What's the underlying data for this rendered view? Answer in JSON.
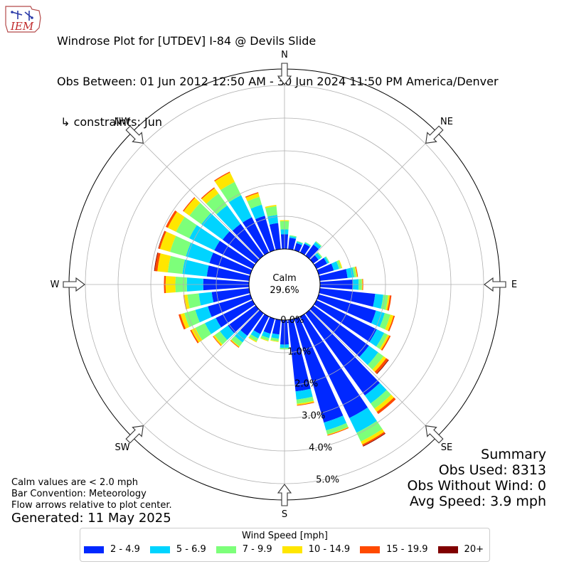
{
  "header": {
    "logo_text": "IEM",
    "title_line1": "Windrose Plot for [UTDEV] I-84 @ Devils Slide",
    "title_line2": "Obs Between: 01 Jun 2012 12:50 AM - 30 Jun 2024 11:50 PM America/Denver",
    "title_line3": " ↳ constraints: Jun"
  },
  "calm": {
    "label": "Calm",
    "value": "29.6%"
  },
  "directions": {
    "N": "N",
    "NE": "NE",
    "E": "E",
    "SE": "SE",
    "S": "S",
    "SW": "SW",
    "W": "W",
    "NW": "NW"
  },
  "footer": {
    "note1": "Calm values are < 2.0 mph",
    "note2": "Bar Convention: Meteorology",
    "note3": "Flow arrows relative to plot center.",
    "generated": "Generated: 11 May 2025"
  },
  "summary": {
    "title": "Summary",
    "obs_used": "Obs Used: 8313",
    "obs_without_wind": "Obs Without Wind: 0",
    "avg_speed": "Avg Speed: 3.9 mph"
  },
  "legend": {
    "title": "Wind Speed [mph]",
    "items": [
      {
        "label": "2 - 4.9",
        "color": "#0028ff"
      },
      {
        "label": "5 - 6.9",
        "color": "#00d4ff"
      },
      {
        "label": "7 - 9.9",
        "color": "#7dff7a"
      },
      {
        "label": "10 - 14.9",
        "color": "#ffe600"
      },
      {
        "label": "15 - 19.9",
        "color": "#ff4a00"
      },
      {
        "label": "20+",
        "color": "#800000"
      }
    ]
  },
  "chart_data": {
    "type": "windrose",
    "title": "Windrose Plot for [UTDEV] I-84 @ Devils Slide",
    "radial_unit": "%",
    "radial_ticks": [
      "0.0%",
      "1.0%",
      "2.0%",
      "3.0%",
      "4.0%",
      "5.0%"
    ],
    "radial_max": 5.5,
    "calm_percent": 29.6,
    "speed_bins": [
      "2 - 4.9",
      "5 - 6.9",
      "7 - 9.9",
      "10 - 14.9",
      "15 - 19.9",
      "20+"
    ],
    "bin_colors": [
      "#0028ff",
      "#00d4ff",
      "#7dff7a",
      "#ffe600",
      "#ff4a00",
      "#800000"
    ],
    "directions_deg": [
      0,
      10,
      20,
      30,
      40,
      50,
      60,
      70,
      80,
      90,
      100,
      110,
      120,
      130,
      140,
      150,
      160,
      170,
      180,
      190,
      200,
      210,
      220,
      230,
      240,
      250,
      260,
      270,
      280,
      290,
      300,
      310,
      320,
      330,
      340,
      350
    ],
    "cumulative": [
      [
        0.45,
        0.6,
        0.85,
        0.88,
        0.88,
        0.88
      ],
      [
        0.35,
        0.4,
        0.43,
        0.43,
        0.43,
        0.43
      ],
      [
        0.23,
        0.28,
        0.3,
        0.3,
        0.3,
        0.3
      ],
      [
        0.3,
        0.34,
        0.36,
        0.36,
        0.36,
        0.36
      ],
      [
        0.42,
        0.52,
        0.55,
        0.55,
        0.55,
        0.55
      ],
      [
        0.2,
        0.3,
        0.34,
        0.34,
        0.34,
        0.34
      ],
      [
        0.36,
        0.42,
        0.45,
        0.45,
        0.45,
        0.45
      ],
      [
        0.48,
        0.65,
        0.72,
        0.75,
        0.75,
        0.75
      ],
      [
        0.85,
        1.05,
        1.12,
        1.15,
        1.17,
        1.17
      ],
      [
        1.0,
        1.18,
        1.28,
        1.3,
        1.32,
        1.32
      ],
      [
        1.7,
        1.95,
        2.1,
        2.15,
        2.2,
        2.2
      ],
      [
        1.82,
        2.1,
        2.28,
        2.38,
        2.42,
        2.42
      ],
      [
        2.05,
        2.3,
        2.42,
        2.48,
        2.52,
        2.52
      ],
      [
        2.1,
        2.45,
        2.65,
        2.75,
        2.83,
        2.85
      ],
      [
        3.1,
        3.4,
        3.6,
        3.72,
        3.8,
        3.8
      ],
      [
        3.45,
        3.95,
        4.25,
        4.35,
        4.4,
        4.42
      ],
      [
        3.3,
        3.55,
        3.68,
        3.7,
        3.72,
        3.72
      ],
      [
        2.2,
        2.45,
        2.58,
        2.62,
        2.64,
        2.64
      ],
      [
        0.75,
        0.85,
        0.9,
        0.9,
        0.9,
        0.9
      ],
      [
        0.45,
        0.58,
        0.66,
        0.68,
        0.68,
        0.68
      ],
      [
        0.48,
        0.62,
        0.7,
        0.72,
        0.72,
        0.72
      ],
      [
        0.6,
        0.75,
        0.85,
        0.88,
        0.88,
        0.88
      ],
      [
        0.85,
        1.1,
        1.25,
        1.28,
        1.3,
        1.3
      ],
      [
        1.05,
        1.35,
        1.55,
        1.6,
        1.62,
        1.62
      ],
      [
        1.25,
        1.62,
        1.95,
        2.08,
        2.12,
        2.12
      ],
      [
        1.35,
        1.75,
        2.1,
        2.22,
        2.28,
        2.28
      ],
      [
        1.15,
        1.55,
        1.9,
        2.0,
        2.02,
        2.02
      ],
      [
        1.4,
        1.9,
        2.25,
        2.55,
        2.6,
        2.6
      ],
      [
        1.3,
        2.05,
        2.5,
        2.82,
        2.9,
        2.92
      ],
      [
        1.3,
        2.05,
        2.55,
        2.87,
        2.92,
        2.93
      ],
      [
        1.3,
        2.15,
        2.6,
        2.88,
        2.95,
        2.95
      ],
      [
        1.25,
        2.05,
        2.5,
        2.72,
        2.75,
        2.75
      ],
      [
        1.2,
        1.9,
        2.35,
        2.55,
        2.58,
        2.58
      ],
      [
        1.2,
        1.95,
        2.4,
        2.72,
        2.75,
        2.75
      ],
      [
        1.1,
        1.45,
        1.7,
        1.82,
        1.85,
        1.85
      ],
      [
        0.8,
        1.05,
        1.32,
        1.36,
        1.36,
        1.36
      ]
    ]
  }
}
